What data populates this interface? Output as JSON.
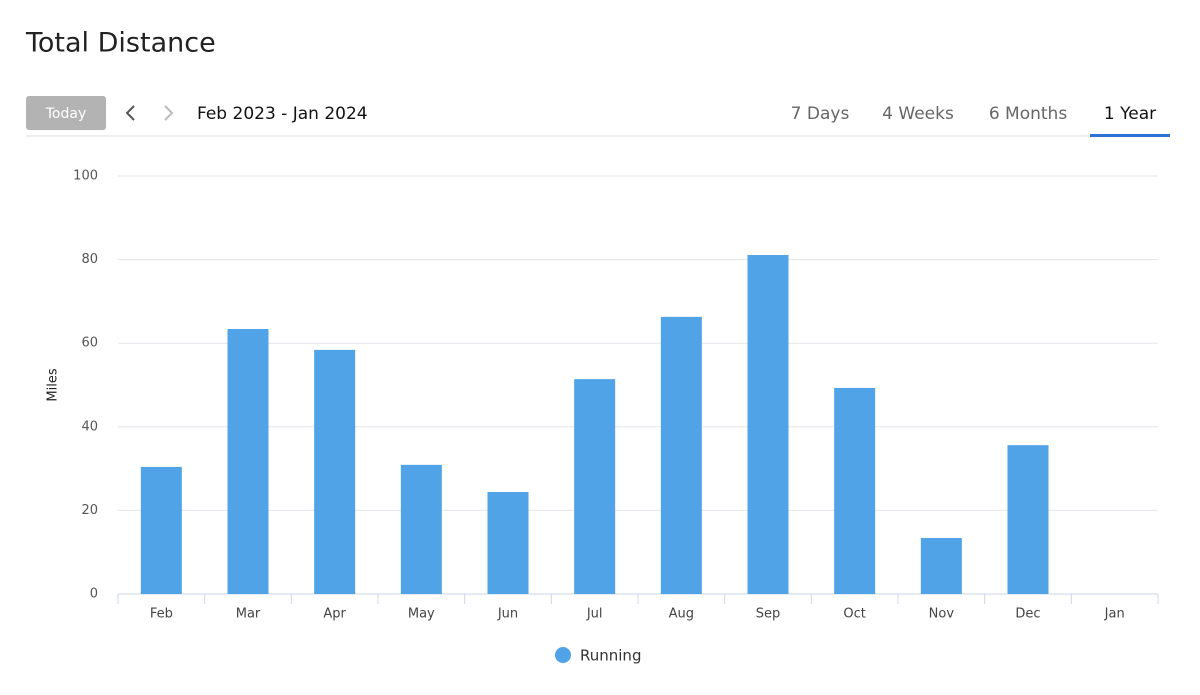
{
  "chart_data": {
    "type": "bar",
    "title": "Total Distance",
    "y_label": "Miles",
    "categories": [
      "Feb",
      "Mar",
      "Apr",
      "May",
      "Jun",
      "Jul",
      "Aug",
      "Sep",
      "Oct",
      "Nov",
      "Dec",
      "Jan"
    ],
    "series": [
      {
        "name": "Running",
        "color": "#4fa3e6",
        "values": [
          30.4,
          63.4,
          58.4,
          30.9,
          24.4,
          51.4,
          66.3,
          81.1,
          49.3,
          13.4,
          35.6,
          0
        ]
      }
    ],
    "ylim": [
      0,
      100
    ],
    "yticks": [
      0,
      20,
      40,
      60,
      80,
      100
    ],
    "grid": true
  },
  "controls": {
    "today": "Today",
    "range": "Feb 2023 - Jan 2024",
    "tabs": [
      "7 Days",
      "4 Weeks",
      "6 Months",
      "1 Year"
    ],
    "active_tab": 3
  }
}
